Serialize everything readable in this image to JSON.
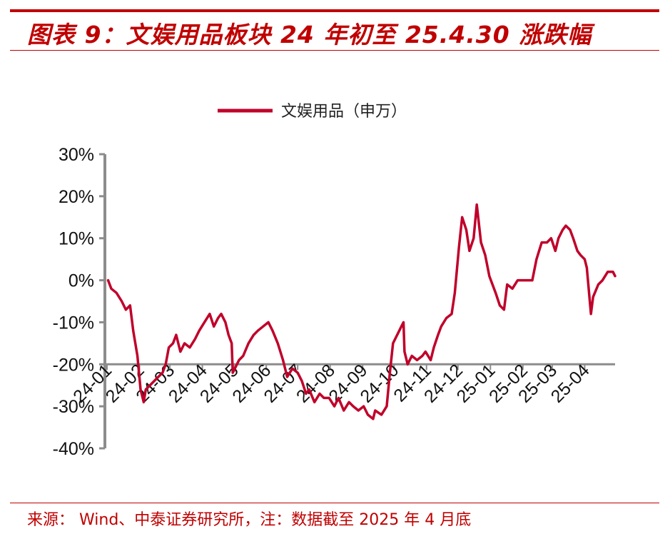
{
  "header": {
    "title": "图表 9：文娱用品板块 24 年初至 25.4.30 涨跌幅"
  },
  "footer": {
    "source": "来源： Wind、中泰证券研究所，注：数据截至 2025 年 4 月底"
  },
  "colors": {
    "accent": "#c00000",
    "series": "#c0002a",
    "axis": "#8c8c8c"
  },
  "chart_data": {
    "type": "line",
    "title": "",
    "xlabel": "",
    "ylabel": "",
    "legend_position": "top-center",
    "grid": false,
    "ylim": [
      -0.4,
      0.3
    ],
    "y_ticks": [
      "30%",
      "20%",
      "10%",
      "0%",
      "-10%",
      "-20%",
      "-30%",
      "-40%"
    ],
    "y_tick_values": [
      0.3,
      0.2,
      0.1,
      0.0,
      -0.1,
      -0.2,
      -0.3,
      -0.4
    ],
    "x_axis_crosses_at": -0.2,
    "x_ticks": [
      "24-01",
      "24-02",
      "24-03",
      "24-04",
      "24-05",
      "24-06",
      "24-07",
      "24-08",
      "24-09",
      "24-10",
      "24-11",
      "24-12",
      "25-01",
      "25-02",
      "25-03",
      "25-04"
    ],
    "x_range": [
      "2024-01-01",
      "2025-04-30"
    ],
    "series": [
      {
        "name": "文娱用品（申万）",
        "points": [
          [
            "2024-01-02",
            0.0
          ],
          [
            "2024-01-05",
            -0.02
          ],
          [
            "2024-01-10",
            -0.03
          ],
          [
            "2024-01-15",
            -0.05
          ],
          [
            "2024-01-19",
            -0.07
          ],
          [
            "2024-01-23",
            -0.06
          ],
          [
            "2024-01-26",
            -0.12
          ],
          [
            "2024-01-30",
            -0.18
          ],
          [
            "2024-02-02",
            -0.26
          ],
          [
            "2024-02-05",
            -0.29
          ],
          [
            "2024-02-07",
            -0.26
          ],
          [
            "2024-02-19",
            -0.23
          ],
          [
            "2024-02-23",
            -0.22
          ],
          [
            "2024-02-26",
            -0.2
          ],
          [
            "2024-02-29",
            -0.16
          ],
          [
            "2024-03-04",
            -0.15
          ],
          [
            "2024-03-07",
            -0.13
          ],
          [
            "2024-03-11",
            -0.17
          ],
          [
            "2024-03-15",
            -0.15
          ],
          [
            "2024-03-20",
            -0.16
          ],
          [
            "2024-03-25",
            -0.14
          ],
          [
            "2024-03-29",
            -0.12
          ],
          [
            "2024-04-03",
            -0.1
          ],
          [
            "2024-04-08",
            -0.08
          ],
          [
            "2024-04-12",
            -0.11
          ],
          [
            "2024-04-16",
            -0.09
          ],
          [
            "2024-04-19",
            -0.08
          ],
          [
            "2024-04-23",
            -0.1
          ],
          [
            "2024-04-26",
            -0.13
          ],
          [
            "2024-04-29",
            -0.15
          ],
          [
            "2024-04-30",
            -0.22
          ],
          [
            "2024-05-06",
            -0.19
          ],
          [
            "2024-05-10",
            -0.18
          ],
          [
            "2024-05-15",
            -0.15
          ],
          [
            "2024-05-20",
            -0.13
          ],
          [
            "2024-05-24",
            -0.12
          ],
          [
            "2024-05-29",
            -0.11
          ],
          [
            "2024-06-03",
            -0.1
          ],
          [
            "2024-06-07",
            -0.12
          ],
          [
            "2024-06-12",
            -0.15
          ],
          [
            "2024-06-17",
            -0.19
          ],
          [
            "2024-06-21",
            -0.23
          ],
          [
            "2024-06-26",
            -0.21
          ],
          [
            "2024-07-01",
            -0.22
          ],
          [
            "2024-07-05",
            -0.24
          ],
          [
            "2024-07-09",
            -0.27
          ],
          [
            "2024-07-12",
            -0.26
          ],
          [
            "2024-07-17",
            -0.29
          ],
          [
            "2024-07-22",
            -0.27
          ],
          [
            "2024-07-26",
            -0.28
          ],
          [
            "2024-07-31",
            -0.28
          ],
          [
            "2024-08-05",
            -0.3
          ],
          [
            "2024-08-09",
            -0.28
          ],
          [
            "2024-08-14",
            -0.31
          ],
          [
            "2024-08-19",
            -0.29
          ],
          [
            "2024-08-23",
            -0.3
          ],
          [
            "2024-08-28",
            -0.31
          ],
          [
            "2024-09-02",
            -0.3
          ],
          [
            "2024-09-06",
            -0.32
          ],
          [
            "2024-09-11",
            -0.33
          ],
          [
            "2024-09-13",
            -0.31
          ],
          [
            "2024-09-19",
            -0.32
          ],
          [
            "2024-09-24",
            -0.3
          ],
          [
            "2024-09-27",
            -0.22
          ],
          [
            "2024-09-30",
            -0.15
          ],
          [
            "2024-10-08",
            -0.11
          ],
          [
            "2024-10-10",
            -0.1
          ],
          [
            "2024-10-11",
            -0.17
          ],
          [
            "2024-10-14",
            -0.2
          ],
          [
            "2024-10-18",
            -0.18
          ],
          [
            "2024-10-23",
            -0.19
          ],
          [
            "2024-10-28",
            -0.18
          ],
          [
            "2024-10-31",
            -0.17
          ],
          [
            "2024-11-05",
            -0.19
          ],
          [
            "2024-11-08",
            -0.16
          ],
          [
            "2024-11-12",
            -0.13
          ],
          [
            "2024-11-15",
            -0.11
          ],
          [
            "2024-11-20",
            -0.09
          ],
          [
            "2024-11-25",
            -0.08
          ],
          [
            "2024-11-28",
            -0.03
          ],
          [
            "2024-12-02",
            0.08
          ],
          [
            "2024-12-05",
            0.15
          ],
          [
            "2024-12-09",
            0.12
          ],
          [
            "2024-12-12",
            0.07
          ],
          [
            "2024-12-16",
            0.1
          ],
          [
            "2024-12-19",
            0.18
          ],
          [
            "2024-12-23",
            0.09
          ],
          [
            "2024-12-27",
            0.06
          ],
          [
            "2024-12-31",
            0.01
          ],
          [
            "2025-01-06",
            -0.03
          ],
          [
            "2025-01-10",
            -0.06
          ],
          [
            "2025-01-14",
            -0.07
          ],
          [
            "2025-01-17",
            -0.01
          ],
          [
            "2025-01-22",
            -0.02
          ],
          [
            "2025-01-27",
            0.0
          ],
          [
            "2025-02-05",
            0.0
          ],
          [
            "2025-02-10",
            0.0
          ],
          [
            "2025-02-14",
            0.05
          ],
          [
            "2025-02-19",
            0.09
          ],
          [
            "2025-02-24",
            0.09
          ],
          [
            "2025-02-28",
            0.1
          ],
          [
            "2025-03-04",
            0.07
          ],
          [
            "2025-03-07",
            0.1
          ],
          [
            "2025-03-11",
            0.12
          ],
          [
            "2025-03-14",
            0.13
          ],
          [
            "2025-03-18",
            0.12
          ],
          [
            "2025-03-21",
            0.1
          ],
          [
            "2025-03-25",
            0.07
          ],
          [
            "2025-03-28",
            0.06
          ],
          [
            "2025-04-01",
            0.05
          ],
          [
            "2025-04-03",
            0.03
          ],
          [
            "2025-04-07",
            -0.08
          ],
          [
            "2025-04-09",
            -0.04
          ],
          [
            "2025-04-14",
            -0.01
          ],
          [
            "2025-04-18",
            0.0
          ],
          [
            "2025-04-23",
            0.02
          ],
          [
            "2025-04-28",
            0.02
          ],
          [
            "2025-04-30",
            0.01
          ]
        ]
      }
    ]
  }
}
